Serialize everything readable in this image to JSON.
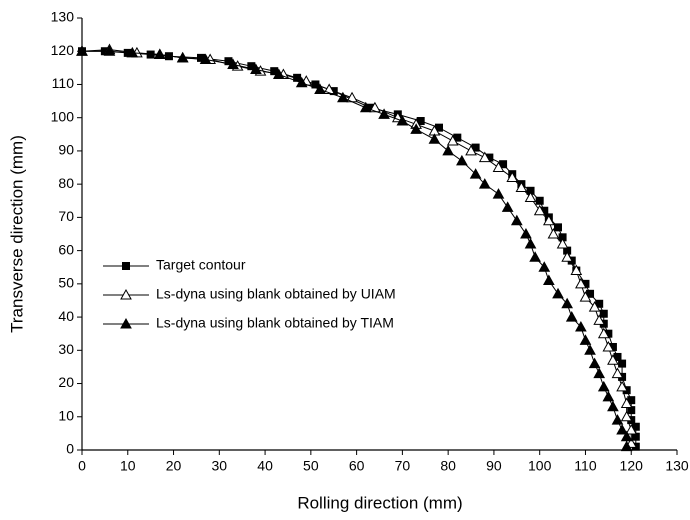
{
  "chart_data": {
    "type": "line",
    "xlabel": "Rolling direction  (mm)",
    "ylabel": "Transverse direction  (mm)",
    "xlim": [
      0,
      130
    ],
    "ylim": [
      0,
      130
    ],
    "xticks": [
      0,
      10,
      20,
      30,
      40,
      50,
      60,
      70,
      80,
      90,
      100,
      110,
      120,
      130
    ],
    "yticks": [
      0,
      10,
      20,
      30,
      40,
      50,
      60,
      70,
      80,
      90,
      100,
      110,
      120,
      130
    ],
    "series": [
      {
        "name": "Target contour",
        "color": "#000000",
        "marker": "square",
        "x": [
          0,
          5,
          10,
          15,
          19,
          26,
          32,
          37,
          42,
          47,
          51,
          55,
          63,
          69,
          74,
          78,
          82,
          86,
          89,
          92,
          94,
          96,
          98,
          100,
          101,
          102,
          104,
          105,
          106,
          107,
          108,
          110,
          111,
          113,
          114,
          114,
          115,
          116,
          117,
          118,
          118,
          119,
          120,
          120,
          120,
          121,
          121,
          121
        ],
        "values": [
          120,
          120,
          119.5,
          119,
          118.5,
          118,
          117,
          115.5,
          114,
          112,
          110,
          108,
          103,
          101,
          99,
          97,
          94,
          91,
          88,
          86,
          83,
          80,
          78,
          75,
          72,
          70,
          67,
          64,
          60,
          57,
          54,
          50,
          47,
          44,
          41,
          38,
          35,
          31,
          28,
          26,
          22,
          18,
          15,
          12,
          9,
          7,
          4,
          1
        ]
      },
      {
        "name": "Ls-dyna using blank obtained by UIAM",
        "color": "#000000",
        "marker": "open-triangle",
        "x": [
          0,
          6,
          12,
          17,
          22,
          28,
          34,
          39,
          44,
          49,
          54,
          59,
          64,
          69,
          73,
          77,
          81,
          85,
          88,
          91,
          94,
          96,
          98,
          100,
          102,
          103,
          105,
          106,
          108,
          109,
          110,
          112,
          113,
          114,
          115,
          116,
          117,
          118,
          119,
          119,
          120,
          120
        ],
        "values": [
          120,
          120.5,
          119.5,
          119,
          118,
          117.5,
          115.5,
          114,
          113,
          111,
          108.5,
          106,
          103,
          100,
          98,
          96,
          93,
          90,
          88,
          85,
          82,
          79,
          76,
          72,
          69,
          65,
          62,
          58,
          54,
          50,
          46,
          43,
          39,
          35,
          31,
          27,
          23,
          19,
          14,
          10,
          6,
          2
        ]
      },
      {
        "name": "Ls-dyna using blank obtained by TIAM",
        "color": "#000000",
        "marker": "filled-triangle",
        "x": [
          0,
          6,
          11,
          17,
          22,
          27,
          33,
          38,
          43,
          48,
          52,
          57,
          62,
          66,
          70,
          73,
          77,
          80,
          83,
          86,
          88,
          91,
          93,
          95,
          97,
          98,
          99,
          101,
          102,
          104,
          106,
          107,
          109,
          110,
          111,
          112,
          113,
          114,
          115,
          116,
          117,
          118,
          119,
          119
        ],
        "values": [
          120,
          120,
          119.5,
          119,
          118,
          117.5,
          116,
          114.5,
          113,
          110.5,
          108.5,
          106,
          103,
          101,
          99,
          96.5,
          93.5,
          90,
          87,
          83,
          80,
          77,
          73,
          69,
          65,
          62,
          58,
          55,
          51,
          47,
          44,
          40,
          37,
          33,
          30,
          26,
          23,
          19,
          16,
          13,
          9,
          6,
          4,
          1
        ]
      }
    ]
  }
}
